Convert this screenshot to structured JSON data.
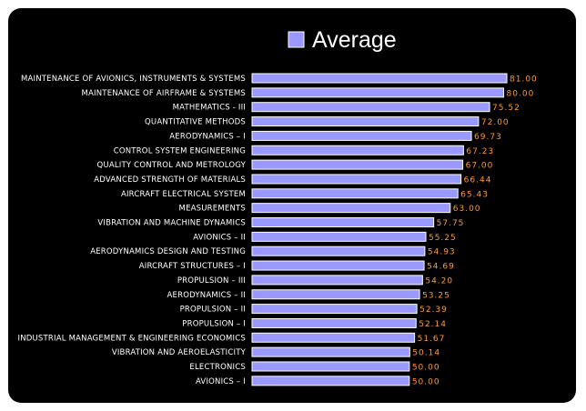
{
  "chart_data": {
    "type": "bar",
    "orientation": "horizontal",
    "legend_position": "top",
    "grid": false,
    "xlim": [
      0,
      81
    ],
    "bar_color": "#9999ff",
    "value_label_color": "#ff9933",
    "background_color": "#000000",
    "series": [
      {
        "name": "Average",
        "values": [
          81.0,
          80.0,
          75.52,
          72.0,
          69.73,
          67.23,
          67.0,
          66.44,
          65.43,
          63.0,
          57.75,
          55.25,
          54.93,
          54.69,
          54.2,
          53.25,
          52.39,
          52.14,
          51.67,
          50.14,
          50.0,
          50.0
        ],
        "value_labels": [
          "81.00",
          "80.00",
          "75.52",
          "72.00",
          "69.73",
          "67.23",
          "67.00",
          "66.44",
          "65.43",
          "63.00",
          "57.75",
          "55.25",
          "54.93",
          "54.69",
          "54.20",
          "53.25",
          "52.39",
          "52.14",
          "51.67",
          "50.14",
          "50.00",
          "50.00"
        ]
      }
    ],
    "categories": [
      "MAINTENANCE OF AVIONICS, INSTRUMENTS & SYSTEMS",
      "MAINTENANCE OF AIRFRAME & SYSTEMS",
      "MATHEMATICS - III",
      "QUANTITATIVE METHODS",
      "AERODYNAMICS – I",
      "CONTROL SYSTEM ENGINEERING",
      "QUALITY CONTROL AND METROLOGY",
      "ADVANCED STRENGTH OF MATERIALS",
      "AIRCRAFT ELECTRICAL SYSTEM",
      "MEASUREMENTS",
      "VIBRATION AND MACHINE DYNAMICS",
      "AVIONICS – II",
      "AERODYNAMICS DESIGN AND TESTING",
      "AIRCRAFT STRUCTURES – I",
      "PROPULSION – III",
      "AERODYNAMICS – II",
      "PROPULSION – II",
      "PROPULSION – I",
      "INDUSTRIAL MANAGEMENT & ENGINEERING ECONOMICS",
      "VIBRATION AND AEROELASTICITY",
      "ELECTRONICS",
      "AVIONICS – I"
    ]
  }
}
